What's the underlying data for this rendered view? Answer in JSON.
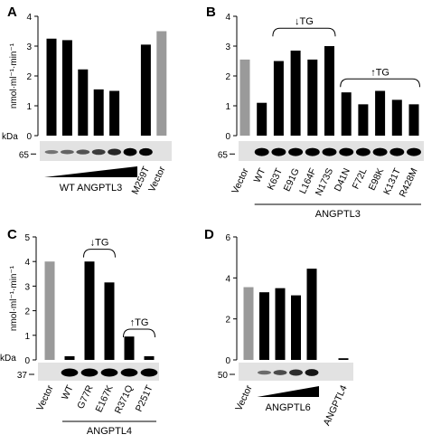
{
  "panels": [
    {
      "letter": "A",
      "ylabel": "nmol·ml⁻¹·min⁻¹",
      "kda_label": "kDa",
      "blot_marker": "65",
      "ylim": [
        0,
        4
      ],
      "yticks": [
        "0",
        "1",
        "2",
        "3",
        "4"
      ],
      "categories": [
        "",
        "",
        "",
        "",
        "",
        "",
        "M259T",
        "Vector"
      ],
      "bar_colors": [
        "#000000",
        "#000000",
        "#000000",
        "#000000",
        "#000000",
        "#000000",
        "#000000",
        "#9a9a9a"
      ],
      "values": [
        3.25,
        3.2,
        2.22,
        1.55,
        1.5,
        0,
        3.05,
        3.5
      ],
      "blot_bands": [
        0.2,
        0.3,
        0.4,
        0.55,
        0.7,
        0.95,
        0.9,
        0
      ],
      "wedge_label": "WT ANGPTL3",
      "group_label": "",
      "annotations": []
    },
    {
      "letter": "B",
      "ylabel": "",
      "kda_label": "",
      "blot_marker": "65",
      "ylim": [
        0,
        4
      ],
      "yticks": [
        "0",
        "1",
        "2",
        "3",
        "4"
      ],
      "categories": [
        "Vector",
        "WT",
        "K63T",
        "E91G",
        "L164F",
        "N173S",
        "D41N",
        "F72L",
        "E98K",
        "K131T",
        "R428M"
      ],
      "bar_colors": [
        "#9a9a9a",
        "#000000",
        "#000000",
        "#000000",
        "#000000",
        "#000000",
        "#000000",
        "#000000",
        "#000000",
        "#000000",
        "#000000"
      ],
      "values": [
        2.55,
        1.1,
        2.5,
        2.85,
        2.55,
        3.0,
        1.45,
        1.05,
        1.5,
        1.2,
        1.05
      ],
      "blot_bands": [
        0,
        1,
        1,
        1,
        1,
        1,
        1,
        1,
        1,
        1,
        1
      ],
      "wedge_label": "",
      "group_label": "ANGPTL3",
      "annotations": [
        {
          "text": "↓TG",
          "from": 2,
          "to": 5,
          "y": 3.6
        },
        {
          "text": "↑TG",
          "from": 6,
          "to": 10,
          "y": 1.9
        }
      ]
    },
    {
      "letter": "C",
      "ylabel": "nmol·ml⁻¹·min⁻¹",
      "kda_label": "kDa",
      "blot_marker": "37",
      "ylim": [
        0,
        5
      ],
      "yticks": [
        "0",
        "1",
        "2",
        "3",
        "4",
        "5"
      ],
      "categories": [
        "Vector",
        "WT",
        "G77R",
        "E167K",
        "R371Q",
        "P251T"
      ],
      "bar_colors": [
        "#9a9a9a",
        "#000000",
        "#000000",
        "#000000",
        "#000000",
        "#000000"
      ],
      "values": [
        4.0,
        0.15,
        4.0,
        3.15,
        0.95,
        0.15
      ],
      "blot_bands": [
        0,
        1,
        1,
        1,
        1,
        1
      ],
      "wedge_label": "",
      "group_label": "ANGPTL4",
      "annotations": [
        {
          "text": "↓TG",
          "from": 2,
          "to": 3,
          "y": 4.5
        },
        {
          "text": "↑TG",
          "from": 4,
          "to": 5,
          "y": 1.25
        }
      ]
    },
    {
      "letter": "D",
      "ylabel": "",
      "kda_label": "",
      "blot_marker": "50",
      "ylim": [
        0,
        6
      ],
      "yticks": [
        "0",
        "2",
        "4",
        "6"
      ],
      "categories": [
        "Vector",
        "",
        "",
        "",
        "",
        "",
        "ANGPTL4"
      ],
      "bar_colors": [
        "#9a9a9a",
        "#000000",
        "#000000",
        "#000000",
        "#000000",
        "#000000",
        "#000000"
      ],
      "values": [
        3.55,
        3.3,
        3.5,
        3.15,
        4.45,
        0,
        0.08
      ],
      "blot_bands": [
        0,
        0.25,
        0.45,
        0.65,
        0.8,
        0,
        0
      ],
      "wedge_label": "ANGPTL6",
      "group_label": "",
      "annotations": []
    }
  ]
}
